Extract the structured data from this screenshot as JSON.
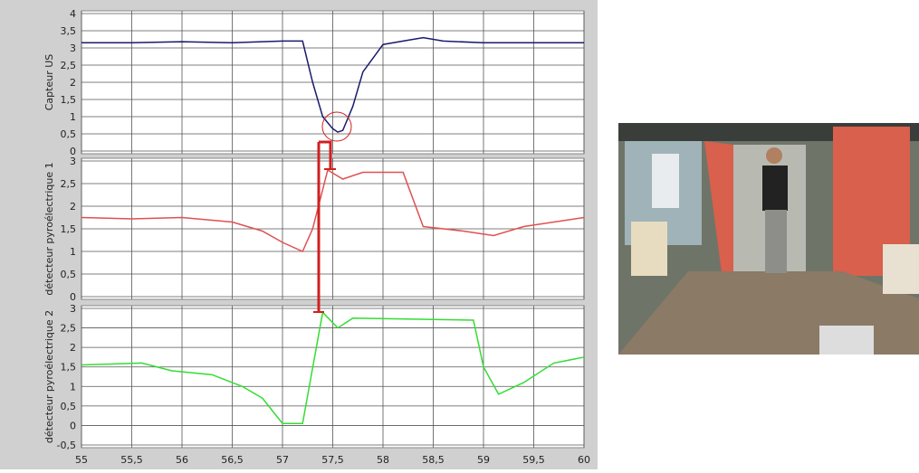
{
  "chart_data": [
    {
      "type": "line",
      "ylabel": "Capteur US",
      "ylim": [
        0,
        4
      ],
      "yticks": [
        0,
        {
          "value": 0.5,
          "label": "0,5"
        },
        1,
        {
          "value": 1.5,
          "label": "1,5"
        },
        2,
        {
          "value": 2.5,
          "label": "2,5"
        },
        3,
        {
          "value": 3.5,
          "label": "3,5"
        },
        4
      ],
      "xlim": [
        55,
        60
      ],
      "grid": true,
      "series": [
        {
          "color": "#1a1a6e",
          "x": [
            55,
            55.5,
            56,
            56.5,
            57,
            57.2,
            57.3,
            57.4,
            57.5,
            57.55,
            57.6,
            57.7,
            57.8,
            58,
            58.2,
            58.4,
            58.6,
            59,
            59.5,
            60
          ],
          "values": [
            3.15,
            3.15,
            3.18,
            3.15,
            3.2,
            3.2,
            2.0,
            1.0,
            0.65,
            0.55,
            0.6,
            1.3,
            2.3,
            3.1,
            3.2,
            3.3,
            3.2,
            3.15,
            3.15,
            3.15
          ]
        }
      ]
    },
    {
      "type": "line",
      "ylabel": "détecteur pyroélectrique 1",
      "ylim": [
        0,
        3
      ],
      "yticks": [
        0,
        {
          "value": 0.5,
          "label": "0,5"
        },
        1,
        {
          "value": 1.5,
          "label": "1,5"
        },
        2,
        {
          "value": 2.5,
          "label": "2,5"
        },
        3
      ],
      "xlim": [
        55,
        60
      ],
      "grid": true,
      "series": [
        {
          "color": "#e05050",
          "x": [
            55,
            55.5,
            56,
            56.5,
            56.8,
            57,
            57.2,
            57.3,
            57.45,
            57.6,
            57.8,
            58.2,
            58.4,
            58.8,
            59.1,
            59.4,
            60
          ],
          "values": [
            1.75,
            1.72,
            1.75,
            1.65,
            1.45,
            1.2,
            1.0,
            1.5,
            2.8,
            2.6,
            2.75,
            2.75,
            1.55,
            1.45,
            1.35,
            1.55,
            1.75
          ]
        }
      ]
    },
    {
      "type": "line",
      "ylabel": "détecteur pyroélectrique 2",
      "ylim": [
        -0.5,
        3
      ],
      "yticks": [
        {
          "value": -0.5,
          "label": "-0,5"
        },
        0,
        {
          "value": 0.5,
          "label": "0,5"
        },
        1,
        {
          "value": 1.5,
          "label": "1,5"
        },
        2,
        {
          "value": 2.5,
          "label": "2,5"
        },
        3
      ],
      "xlim": [
        55,
        60
      ],
      "grid": true,
      "xticks": [
        55,
        {
          "value": 55.5,
          "label": "55,5"
        },
        56,
        {
          "value": 56.5,
          "label": "56,5"
        },
        57,
        {
          "value": 57.5,
          "label": "57,5"
        },
        58,
        {
          "value": 58.5,
          "label": "58,5"
        },
        59,
        {
          "value": 59.5,
          "label": "59,5"
        },
        60
      ],
      "series": [
        {
          "color": "#33dd33",
          "x": [
            55,
            55.6,
            55.9,
            56.3,
            56.6,
            56.8,
            57,
            57.2,
            57.4,
            57.55,
            57.7,
            58.9,
            59,
            59.15,
            59.4,
            59.7,
            60
          ],
          "values": [
            1.55,
            1.6,
            1.4,
            1.3,
            1.0,
            0.7,
            0.05,
            0.05,
            2.9,
            2.5,
            2.75,
            2.7,
            1.5,
            0.8,
            1.1,
            1.6,
            1.75
          ]
        }
      ]
    }
  ]
}
